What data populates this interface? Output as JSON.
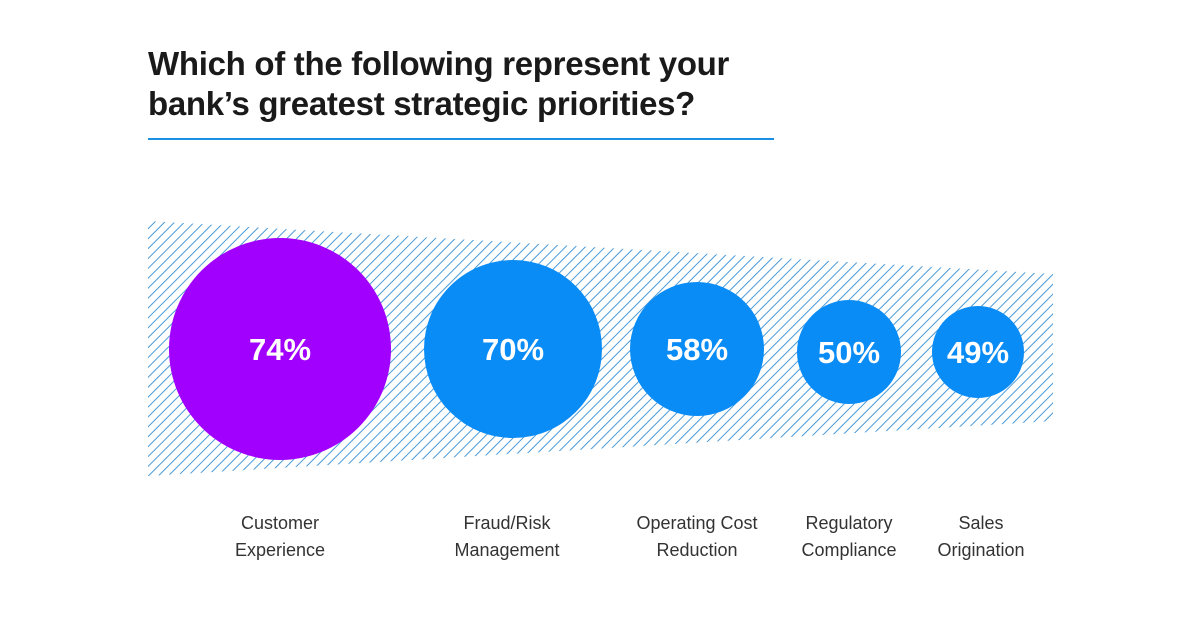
{
  "chart_data": {
    "type": "bubble",
    "title": "Which of the following represent your bank’s greatest strategic priorities?",
    "categories": [
      "Customer Experience",
      "Fraud/Risk Management",
      "Operating Cost Reduction",
      "Regulatory Compliance",
      "Sales Origination"
    ],
    "label_lines": [
      [
        "Customer",
        "Experience"
      ],
      [
        "Fraud/Risk",
        "Management"
      ],
      [
        "Operating Cost",
        "Reduction"
      ],
      [
        "Regulatory",
        "Compliance"
      ],
      [
        "Sales",
        "Origination"
      ]
    ],
    "values": [
      74,
      70,
      58,
      50,
      49
    ],
    "data_labels": [
      "74%",
      "70%",
      "58%",
      "50%",
      "49%"
    ],
    "colors": [
      "#a100ff",
      "#0a8cf7",
      "#0a8cf7",
      "#0a8cf7",
      "#0a8cf7"
    ],
    "hatch_color": "#4a9ad8",
    "accent_rule_color": "#1a8fe3"
  }
}
